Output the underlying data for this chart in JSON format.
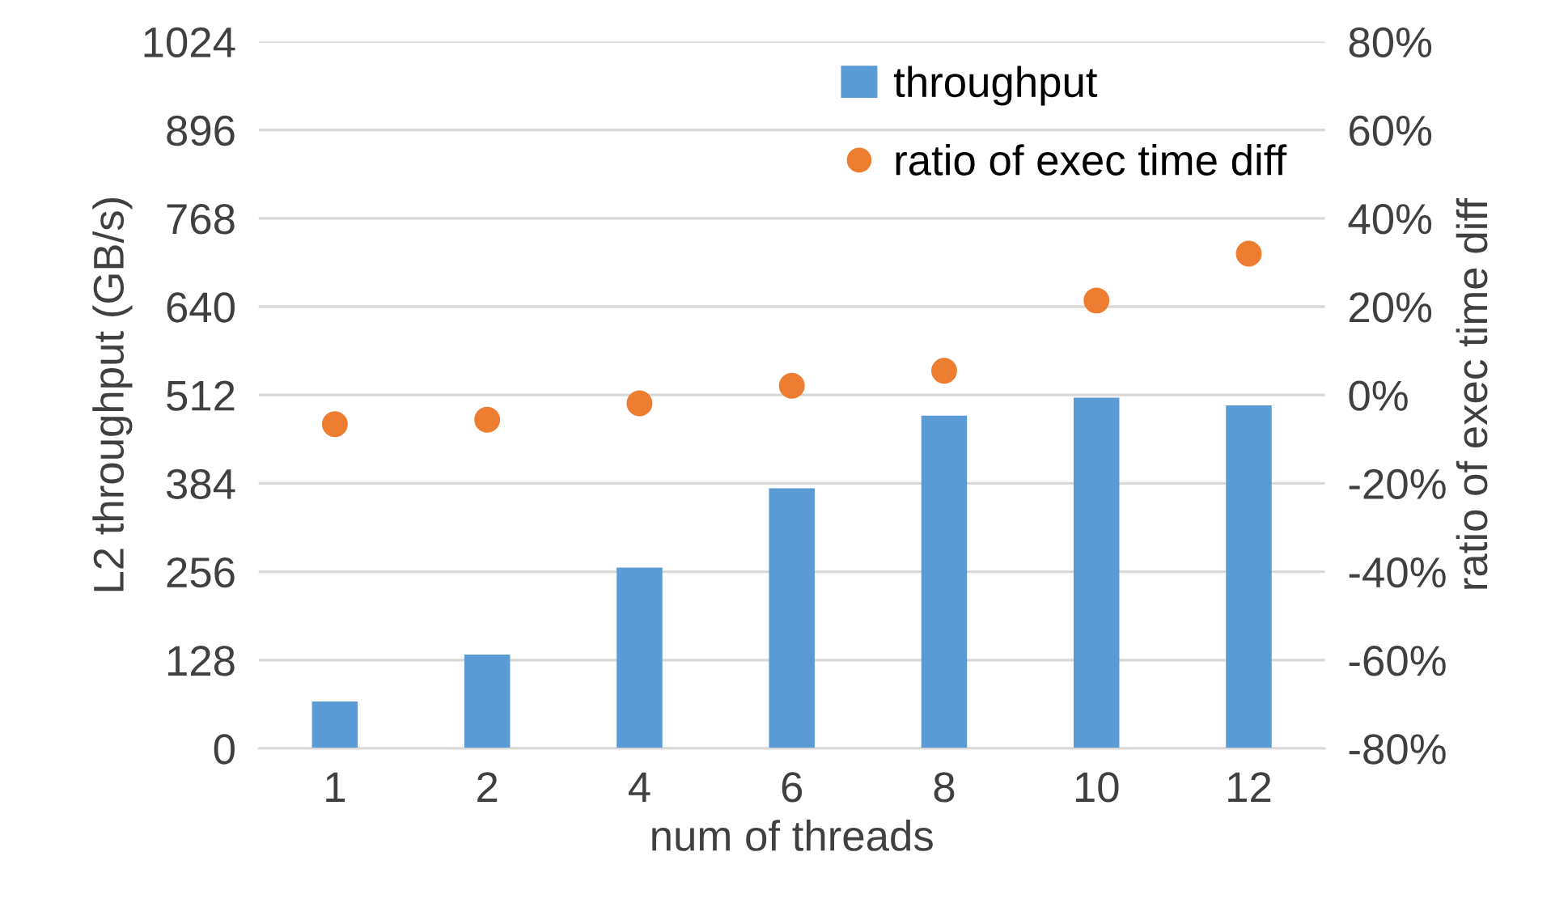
{
  "chart_data": {
    "type": "bar",
    "categories": [
      "1",
      "2",
      "4",
      "6",
      "8",
      "10",
      "12"
    ],
    "xlabel": "num of threads",
    "ylabel": "L2 throughput (GB/s)",
    "y2label": "ratio of exec time diff",
    "series": [
      {
        "name": "throughput",
        "color": "#5b9bd5",
        "values": [
          68,
          136,
          262,
          377,
          482,
          508,
          497
        ]
      },
      {
        "name": "ratio of exec time diff",
        "type": "scatter",
        "axis": "y2",
        "color": "#ed7d31",
        "values": [
          -6.6,
          -5.6,
          -1.9,
          2.1,
          5.5,
          21.4,
          32.0
        ]
      }
    ],
    "ylim": [
      0,
      1024
    ],
    "yticks": [
      0,
      128,
      256,
      384,
      512,
      640,
      768,
      896,
      1024
    ],
    "y2lim": [
      -80,
      80
    ],
    "y2ticks": [
      {
        "value": -80,
        "label": "-80%"
      },
      {
        "value": -60,
        "label": "-60%"
      },
      {
        "value": -40,
        "label": "-40%"
      },
      {
        "value": -20,
        "label": "-20%"
      },
      {
        "value": 0,
        "label": "0%"
      },
      {
        "value": 20,
        "label": "20%"
      },
      {
        "value": 40,
        "label": "40%"
      },
      {
        "value": 60,
        "label": "60%"
      },
      {
        "value": 80,
        "label": "80%"
      }
    ],
    "grid": "y",
    "legend": "top right",
    "marker": "circle"
  }
}
